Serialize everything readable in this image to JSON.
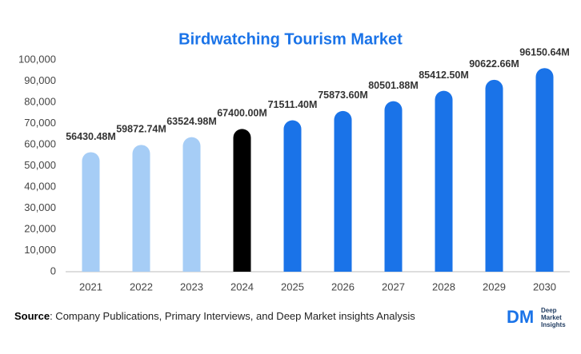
{
  "chart_data": {
    "type": "bar",
    "title": "Birdwatching Tourism Market",
    "categories": [
      "2021",
      "2022",
      "2023",
      "2024",
      "2025",
      "2026",
      "2027",
      "2028",
      "2029",
      "2030"
    ],
    "values": [
      56430.48,
      59872.74,
      63524.98,
      67400.0,
      71511.4,
      75873.6,
      80501.88,
      85412.5,
      90622.66,
      96150.64
    ],
    "value_labels": [
      "56430.48M",
      "59872.74M",
      "63524.98M",
      "67400.00M",
      "71511.40M",
      "75873.60M",
      "80501.88M",
      "85412.50M",
      "90622.66M",
      "96150.64M"
    ],
    "colors": [
      "#a6cdf6",
      "#a6cdf6",
      "#a6cdf6",
      "#000000",
      "#1a73e8",
      "#1a73e8",
      "#1a73e8",
      "#1a73e8",
      "#1a73e8",
      "#1a73e8"
    ],
    "ylim": [
      0,
      100000
    ],
    "yticks": [
      0,
      {
        "value": 10000,
        "label": "10,000"
      },
      {
        "value": 20000,
        "label": "20,000"
      },
      {
        "value": 30000,
        "label": "30,000"
      },
      {
        "value": 40000,
        "label": "40,000"
      },
      {
        "value": 50000,
        "label": "50,000"
      },
      {
        "value": 60000,
        "label": "60,000"
      },
      {
        "value": 70000,
        "label": "70,000"
      },
      {
        "value": 80000,
        "label": "80,000"
      },
      {
        "value": 90000,
        "label": "90,000"
      },
      {
        "value": 100000,
        "label": "100,000"
      }
    ],
    "grid": false
  },
  "source": {
    "label": "Source",
    "text": ": Company Publications, Primary Interviews, and Deep Market insights Analysis"
  },
  "logo": {
    "mark": "DM",
    "lines": [
      "Deep",
      "Market",
      "Insights"
    ]
  }
}
